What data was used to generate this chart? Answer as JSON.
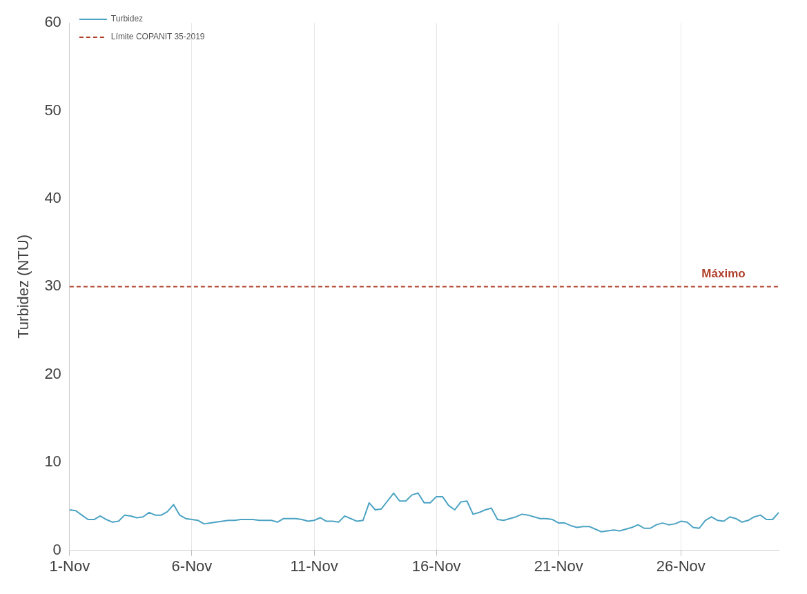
{
  "chart_data": {
    "type": "line",
    "ylabel": "Turbidez (NTU)",
    "categories": [
      "1-Nov",
      null,
      null,
      null,
      null,
      null,
      null,
      null,
      null,
      null,
      null,
      null,
      null,
      null,
      null,
      null,
      null,
      null,
      null,
      null,
      "6-Nov",
      null,
      null,
      null,
      null,
      null,
      null,
      null,
      null,
      null,
      null,
      null,
      null,
      null,
      null,
      null,
      null,
      null,
      null,
      null,
      "11-Nov",
      null,
      null,
      null,
      null,
      null,
      null,
      null,
      null,
      null,
      null,
      null,
      null,
      null,
      null,
      null,
      null,
      null,
      null,
      null,
      "16-Nov",
      null,
      null,
      null,
      null,
      null,
      null,
      null,
      null,
      null,
      null,
      null,
      null,
      null,
      null,
      null,
      null,
      null,
      null,
      null,
      "21-Nov",
      null,
      null,
      null,
      null,
      null,
      null,
      null,
      null,
      null,
      null,
      null,
      null,
      null,
      null,
      null,
      null,
      null,
      null,
      null,
      "26-Nov",
      null,
      null,
      null,
      null,
      null,
      null,
      null,
      null,
      null,
      null,
      null,
      null,
      null,
      null,
      null,
      null
    ],
    "ylim": [
      0,
      60
    ],
    "yticks": [
      0,
      10,
      20,
      30,
      40,
      50,
      60
    ],
    "grid": "x",
    "legend": "top left",
    "marker": "none",
    "series": [
      {
        "name": "Turbidez",
        "color": "#4ba3c3",
        "values": [
          4.6,
          4.5,
          4.0,
          3.5,
          3.5,
          3.9,
          3.5,
          3.2,
          3.3,
          4.0,
          3.9,
          3.7,
          3.8,
          4.3,
          4.0,
          4.0,
          4.4,
          5.2,
          4.0,
          3.6,
          3.5,
          3.4,
          3.0,
          3.1,
          3.2,
          3.3,
          3.4,
          3.4,
          3.5,
          3.5,
          3.5,
          3.4,
          3.4,
          3.4,
          3.2,
          3.6,
          3.6,
          3.6,
          3.5,
          3.3,
          3.4,
          3.7,
          3.3,
          3.3,
          3.2,
          3.9,
          3.6,
          3.3,
          3.4,
          5.4,
          4.6,
          4.7,
          5.6,
          6.5,
          5.6,
          5.6,
          6.3,
          6.5,
          5.4,
          5.4,
          6.1,
          6.1,
          5.1,
          4.6,
          5.5,
          5.6,
          4.1,
          4.3,
          4.6,
          4.8,
          3.5,
          3.4,
          3.6,
          3.8,
          4.1,
          4.0,
          3.8,
          3.6,
          3.6,
          3.5,
          3.1,
          3.1,
          2.8,
          2.6,
          2.7,
          2.7,
          2.4,
          2.1,
          2.2,
          2.3,
          2.2,
          2.4,
          2.6,
          2.9,
          2.5,
          2.5,
          2.9,
          3.1,
          2.9,
          3.0,
          3.3,
          3.2,
          2.6,
          2.5,
          3.4,
          3.8,
          3.4,
          3.3,
          3.8,
          3.6,
          3.2,
          3.4,
          3.8,
          4.0,
          3.5,
          3.5,
          4.3
        ]
      }
    ],
    "ref_lines": [
      {
        "axis": "y",
        "value": 30,
        "label": "Límite COPANIT 35-2019",
        "color": "#b0402a",
        "line_style": "dashed"
      }
    ],
    "annotations": [
      {
        "text": "Máximo",
        "y": 30
      }
    ]
  }
}
